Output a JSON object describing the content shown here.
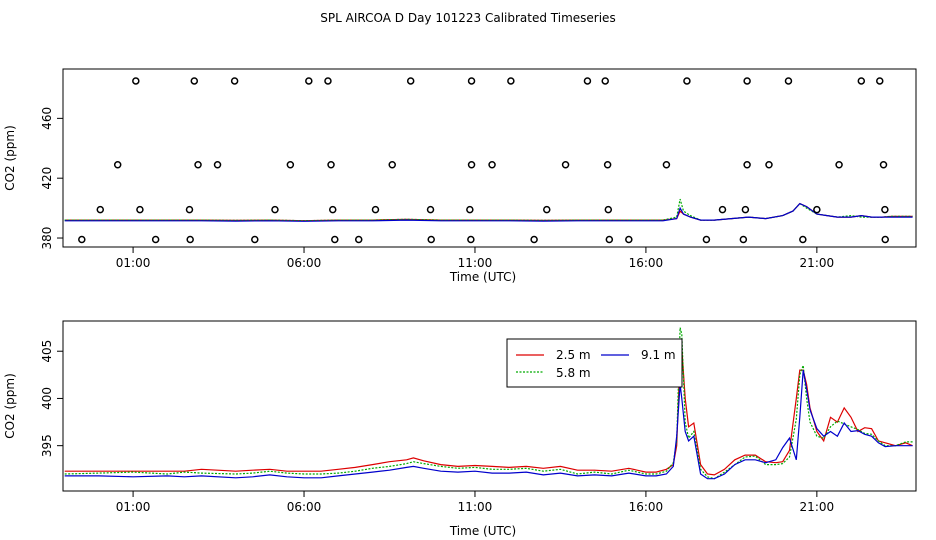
{
  "title": "SPL AIRCOA D  Day 101223  Calibrated Timeseries",
  "chart_data": [
    {
      "type": "scatter",
      "xlabel": "Time (UTC)",
      "ylabel": "CO2 (ppm)",
      "xlim": [
        -1.05,
        23.9
      ],
      "ylim": [
        374,
        493
      ],
      "xticks": [
        {
          "value": 1,
          "label": "01:00"
        },
        {
          "value": 6,
          "label": "06:00"
        },
        {
          "value": 11,
          "label": "11:00"
        },
        {
          "value": 16,
          "label": "16:00"
        },
        {
          "value": 21,
          "label": "21:00"
        }
      ],
      "yticks": [
        {
          "value": 380,
          "label": "380"
        },
        {
          "value": 420,
          "label": "420"
        },
        {
          "value": 460,
          "label": "460"
        }
      ],
      "points": [
        [
          1.08,
          485
        ],
        [
          2.79,
          485
        ],
        [
          3.97,
          485
        ],
        [
          6.14,
          485
        ],
        [
          6.7,
          485
        ],
        [
          9.12,
          485
        ],
        [
          10.9,
          485
        ],
        [
          12.05,
          485
        ],
        [
          14.29,
          485
        ],
        [
          14.81,
          485
        ],
        [
          17.2,
          485
        ],
        [
          18.96,
          485
        ],
        [
          20.17,
          485
        ],
        [
          22.3,
          485
        ],
        [
          22.84,
          485
        ],
        [
          0.55,
          429
        ],
        [
          2.9,
          429
        ],
        [
          3.47,
          429
        ],
        [
          5.6,
          429
        ],
        [
          6.79,
          429
        ],
        [
          8.58,
          429
        ],
        [
          10.9,
          429
        ],
        [
          11.5,
          429
        ],
        [
          13.65,
          429
        ],
        [
          14.88,
          429
        ],
        [
          16.6,
          429
        ],
        [
          18.96,
          429
        ],
        [
          19.6,
          429
        ],
        [
          21.65,
          429
        ],
        [
          22.95,
          429
        ],
        [
          0.04,
          399
        ],
        [
          1.2,
          399
        ],
        [
          2.65,
          399
        ],
        [
          5.15,
          399
        ],
        [
          6.84,
          399
        ],
        [
          8.09,
          399
        ],
        [
          9.7,
          399
        ],
        [
          10.85,
          399
        ],
        [
          13.1,
          399
        ],
        [
          14.9,
          399
        ],
        [
          18.24,
          399
        ],
        [
          18.91,
          399
        ],
        [
          21.0,
          399
        ],
        [
          22.99,
          399
        ],
        [
          -0.5,
          379
        ],
        [
          1.66,
          379
        ],
        [
          2.67,
          379
        ],
        [
          4.56,
          379
        ],
        [
          6.9,
          379
        ],
        [
          7.6,
          379
        ],
        [
          9.72,
          379
        ],
        [
          10.88,
          379
        ],
        [
          12.73,
          379
        ],
        [
          14.93,
          379
        ],
        [
          15.5,
          379
        ],
        [
          17.77,
          379
        ],
        [
          18.85,
          379
        ],
        [
          20.59,
          379
        ],
        [
          23.0,
          379
        ]
      ],
      "series": [
        {
          "name": "2.5 m",
          "color": "#dd0000",
          "x": [
            -1.0,
            0,
            1,
            2,
            3,
            4,
            5,
            6,
            7,
            8,
            9,
            10,
            11,
            12,
            13,
            14,
            15,
            16,
            16.5,
            16.9,
            17.0,
            17.1,
            17.3,
            17.6,
            18,
            18.5,
            19,
            19.5,
            20,
            20.3,
            20.5,
            20.7,
            21,
            21.3,
            21.6,
            22,
            22.3,
            22.6,
            22.9,
            23.2,
            23.5,
            23.8
          ],
          "values": [
            392,
            392,
            392,
            392,
            392,
            391.8,
            392,
            391.6,
            392,
            392,
            392.5,
            392,
            392,
            392,
            391.8,
            392,
            392,
            392,
            392,
            393,
            398,
            396,
            394,
            392,
            392,
            393,
            394,
            393,
            395,
            398,
            403,
            401,
            396,
            395,
            394,
            394,
            395,
            394,
            394,
            394.5,
            394.5,
            394.5
          ]
        },
        {
          "name": "5.8 m",
          "color": "#00aa00",
          "x": [
            -1.0,
            0,
            1,
            2,
            3,
            4,
            5,
            6,
            7,
            8,
            9,
            10,
            11,
            12,
            13,
            14,
            15,
            16,
            16.5,
            16.9,
            17.0,
            17.1,
            17.3,
            17.6,
            18,
            18.5,
            19,
            19.5,
            20,
            20.3,
            20.5,
            20.7,
            21,
            21.3,
            21.6,
            22,
            22.3,
            22.6,
            22.9,
            23.2,
            23.5,
            23.8
          ],
          "values": [
            392,
            392,
            392,
            392,
            392,
            391.8,
            392,
            391.6,
            392,
            392,
            392.5,
            392,
            392,
            392,
            391.8,
            392,
            392,
            392,
            392,
            394,
            406,
            398,
            395,
            392,
            392,
            393,
            394,
            393,
            395,
            398,
            403,
            400,
            396,
            395,
            394,
            395,
            394,
            394,
            394,
            394.5,
            394.5,
            394.5
          ]
        },
        {
          "name": "9.1 m",
          "color": "#0000cc",
          "x": [
            -1.0,
            0,
            1,
            2,
            3,
            4,
            5,
            6,
            7,
            8,
            9,
            10,
            11,
            12,
            13,
            14,
            15,
            16,
            16.5,
            16.9,
            17.0,
            17.1,
            17.3,
            17.6,
            18,
            18.5,
            19,
            19.5,
            20,
            20.3,
            20.5,
            20.7,
            21,
            21.3,
            21.6,
            22,
            22.3,
            22.6,
            22.9,
            23.2,
            23.5,
            23.8
          ],
          "values": [
            391.5,
            391.5,
            391.5,
            391.5,
            391.5,
            391.3,
            391.5,
            391.2,
            391.5,
            391.5,
            392,
            391.5,
            391.5,
            391.5,
            391.3,
            391.5,
            391.5,
            391.5,
            391.5,
            393,
            400,
            396,
            394,
            392,
            392,
            393,
            394,
            393,
            395,
            398,
            403,
            401,
            396,
            395,
            394,
            394,
            395,
            394,
            394,
            394,
            394,
            394
          ]
        }
      ]
    },
    {
      "type": "line",
      "xlabel": "Time (UTC)",
      "ylabel": "CO2 (ppm)",
      "xlim": [
        -1.05,
        23.9
      ],
      "ylim": [
        390.2,
        408.2
      ],
      "xticks": [
        {
          "value": 1,
          "label": "01:00"
        },
        {
          "value": 6,
          "label": "06:00"
        },
        {
          "value": 11,
          "label": "11:00"
        },
        {
          "value": 16,
          "label": "16:00"
        },
        {
          "value": 21,
          "label": "21:00"
        }
      ],
      "yticks": [
        {
          "value": 395,
          "label": "395"
        },
        {
          "value": 400,
          "label": "400"
        },
        {
          "value": 405,
          "label": "405"
        }
      ],
      "legend": {
        "position": "top-right",
        "entries": [
          {
            "name": "2.5 m",
            "color": "#dd0000"
          },
          {
            "name": "9.1 m",
            "color": "#0000cc"
          },
          {
            "name": "5.8 m",
            "color": "#00aa00"
          }
        ]
      },
      "series": [
        {
          "name": "2.5 m",
          "color": "#dd0000",
          "x": [
            -1.0,
            0,
            1,
            2,
            2.5,
            3,
            4,
            4.5,
            5,
            5.5,
            6,
            6.5,
            7,
            7.5,
            8,
            8.5,
            9,
            9.2,
            9.5,
            10,
            10.5,
            11,
            11.5,
            12,
            12.5,
            13,
            13.5,
            14,
            14.5,
            15,
            15.5,
            16,
            16.3,
            16.6,
            16.8,
            16.9,
            17.0,
            17.05,
            17.15,
            17.25,
            17.4,
            17.6,
            17.8,
            18.0,
            18.3,
            18.6,
            18.9,
            19.2,
            19.5,
            19.8,
            20.0,
            20.2,
            20.4,
            20.5,
            20.6,
            20.7,
            20.8,
            21.0,
            21.2,
            21.4,
            21.6,
            21.8,
            22.0,
            22.2,
            22.4,
            22.6,
            22.8,
            23.0,
            23.3,
            23.6,
            23.8
          ],
          "values": [
            392.3,
            392.3,
            392.3,
            392.3,
            392.3,
            392.5,
            392.3,
            392.4,
            392.5,
            392.3,
            392.3,
            392.3,
            392.5,
            392.7,
            393.0,
            393.3,
            393.5,
            393.7,
            393.4,
            393.0,
            392.8,
            392.9,
            392.8,
            392.7,
            392.8,
            392.6,
            392.8,
            392.4,
            392.4,
            392.3,
            392.6,
            392.2,
            392.2,
            392.5,
            393.0,
            395.0,
            404.5,
            405.3,
            400.0,
            397.0,
            397.4,
            393.0,
            392.0,
            391.9,
            392.5,
            393.5,
            394.0,
            394.0,
            393.3,
            393.2,
            393.3,
            394.5,
            400.0,
            403.0,
            403.0,
            401.5,
            399.0,
            396.5,
            395.5,
            398.0,
            397.5,
            399.0,
            398.0,
            396.5,
            396.9,
            396.8,
            395.5,
            395.3,
            395.0,
            395.3,
            395.0
          ]
        },
        {
          "name": "5.8 m",
          "color": "#00aa00",
          "x": [
            -1.0,
            0,
            1,
            2,
            2.5,
            3,
            4,
            4.5,
            5,
            5.5,
            6,
            6.5,
            7,
            7.5,
            8,
            8.5,
            9,
            9.2,
            9.5,
            10,
            10.5,
            11,
            11.5,
            12,
            12.5,
            13,
            13.5,
            14,
            14.5,
            15,
            15.5,
            16,
            16.3,
            16.6,
            16.8,
            16.9,
            17.0,
            17.05,
            17.15,
            17.25,
            17.4,
            17.6,
            17.8,
            18.0,
            18.3,
            18.6,
            18.9,
            19.2,
            19.5,
            19.8,
            20.0,
            20.2,
            20.4,
            20.5,
            20.6,
            20.7,
            20.8,
            21.0,
            21.2,
            21.4,
            21.6,
            21.8,
            22.0,
            22.2,
            22.4,
            22.6,
            22.8,
            23.0,
            23.3,
            23.6,
            23.8
          ],
          "values": [
            392.0,
            392.1,
            392.2,
            392.0,
            392.2,
            392.1,
            392.0,
            392.1,
            392.3,
            392.1,
            392.0,
            392.0,
            392.1,
            392.3,
            392.6,
            392.8,
            393.1,
            393.3,
            393.1,
            392.8,
            392.6,
            392.7,
            392.5,
            392.5,
            392.6,
            392.3,
            392.5,
            392.0,
            392.2,
            392.0,
            392.4,
            392.0,
            392.0,
            392.3,
            393.2,
            395.5,
            407.5,
            406.8,
            397.5,
            395.8,
            396.5,
            392.5,
            391.7,
            391.5,
            392.2,
            393.0,
            393.8,
            393.9,
            393.0,
            393.0,
            393.1,
            393.8,
            397.8,
            402.5,
            403.5,
            400.0,
            397.5,
            396.0,
            395.8,
            397.0,
            397.6,
            397.3,
            397.0,
            396.7,
            396.3,
            396.2,
            395.5,
            395.0,
            395.0,
            395.4,
            395.4
          ]
        },
        {
          "name": "9.1 m",
          "color": "#0000cc",
          "x": [
            -1.0,
            0,
            1,
            2,
            2.5,
            3,
            4,
            4.5,
            5,
            5.5,
            6,
            6.5,
            7,
            7.5,
            8,
            8.5,
            9,
            9.2,
            9.5,
            10,
            10.5,
            11,
            11.5,
            12,
            12.5,
            13,
            13.5,
            14,
            14.5,
            15,
            15.5,
            16,
            16.3,
            16.6,
            16.8,
            16.9,
            17.0,
            17.05,
            17.15,
            17.25,
            17.4,
            17.6,
            17.8,
            18.0,
            18.3,
            18.6,
            18.9,
            19.2,
            19.5,
            19.8,
            20.0,
            20.2,
            20.4,
            20.5,
            20.6,
            20.7,
            20.8,
            21.0,
            21.2,
            21.4,
            21.6,
            21.8,
            22.0,
            22.2,
            22.4,
            22.6,
            22.8,
            23.0,
            23.3,
            23.6,
            23.8
          ],
          "values": [
            391.8,
            391.8,
            391.7,
            391.8,
            391.7,
            391.8,
            391.6,
            391.7,
            391.9,
            391.7,
            391.6,
            391.6,
            391.8,
            392.0,
            392.2,
            392.4,
            392.7,
            392.8,
            392.6,
            392.3,
            392.2,
            392.3,
            392.1,
            392.1,
            392.2,
            391.9,
            392.1,
            391.8,
            391.9,
            391.8,
            392.1,
            391.8,
            391.8,
            392.0,
            392.8,
            396.0,
            401.5,
            400.0,
            396.5,
            395.5,
            396.0,
            392.0,
            391.5,
            391.5,
            392.0,
            393.0,
            393.5,
            393.5,
            393.2,
            393.5,
            394.8,
            395.8,
            393.5,
            398.0,
            403.0,
            401.0,
            398.8,
            396.8,
            396.0,
            396.5,
            396.0,
            397.4,
            396.5,
            396.6,
            396.2,
            396.0,
            395.3,
            394.9,
            395.0,
            395.0,
            395.0
          ]
        }
      ]
    }
  ]
}
